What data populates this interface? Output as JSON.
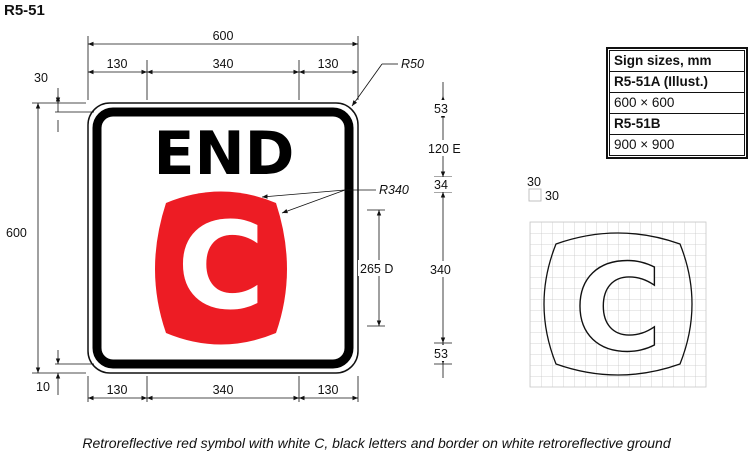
{
  "sign_code": "R5-51",
  "sign": {
    "word": "END",
    "letter": "C",
    "symbol_color": "#ED1C24",
    "border_color": "#000000",
    "ground_color": "#FFFFFF"
  },
  "dimensions": {
    "overall_width": "600",
    "top_left_offset": "130",
    "top_middle": "340",
    "top_right_offset": "130",
    "bottom_left_offset": "130",
    "bottom_middle": "340",
    "bottom_right_offset": "130",
    "border_offset": "30",
    "height": "600",
    "border_width": "10",
    "corner_radius": "R50",
    "symbol_radius": "R340",
    "letter_height": "265 D",
    "right_top_gap": "53",
    "text_height": "120 E",
    "text_symbol_gap": "34",
    "symbol_height": "340",
    "right_bottom_gap": "53"
  },
  "grid_label": {
    "x": "30",
    "y": "30"
  },
  "sign_sizes": {
    "title": "Sign sizes, mm",
    "rows": [
      {
        "code": "R5-51A (Illust.)",
        "size": "600 × 600"
      },
      {
        "code": "R5-51B",
        "size": "900 × 900"
      }
    ]
  },
  "caption": "Retroreflective red symbol with white C, black letters and border on white retroreflective ground"
}
